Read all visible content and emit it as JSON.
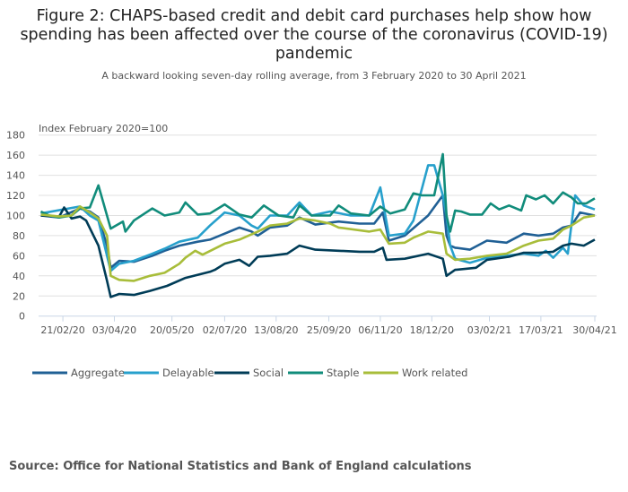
{
  "chart_data": {
    "type": "line",
    "title": "Figure 2: CHAPS-based credit and debit card purchases help show how spending has been affected over the course of the coronavirus (COVID-19) pandemic",
    "subtitle": "A backward looking seven-day rolling average, from 3 February 2020 to 30 April 2021",
    "ylabel": "Index February 2020=100",
    "xlabel": "",
    "ylim": [
      0,
      180
    ],
    "yticks": [
      "0",
      "20",
      "40",
      "60",
      "80",
      "100",
      "120",
      "140",
      "160",
      "180"
    ],
    "x_unit": "days since 03/02/20",
    "xlim": [
      0,
      452
    ],
    "xticks": [
      {
        "day": 18,
        "label": "21/02/20"
      },
      {
        "day": 60,
        "label": "03/04/20"
      },
      {
        "day": 107,
        "label": "20/05/20"
      },
      {
        "day": 150,
        "label": "02/07/20"
      },
      {
        "day": 192,
        "label": "13/08/20"
      },
      {
        "day": 235,
        "label": "25/09/20"
      },
      {
        "day": 277,
        "label": "06/11/20"
      },
      {
        "day": 319,
        "label": "18/12/20"
      },
      {
        "day": 366,
        "label": "03/02/21"
      },
      {
        "day": 408,
        "label": "17/03/21"
      },
      {
        "day": 452,
        "label": "30/04/21"
      }
    ],
    "grid": true,
    "legend_position": "bottom",
    "series": [
      {
        "name": "Aggregate",
        "color": "#206095",
        "points": [
          [
            0,
            100
          ],
          [
            15,
            98
          ],
          [
            32,
            107
          ],
          [
            40,
            104
          ],
          [
            47,
            98
          ],
          [
            54,
            70
          ],
          [
            57,
            48
          ],
          [
            64,
            55
          ],
          [
            76,
            54
          ],
          [
            91,
            60
          ],
          [
            101,
            65
          ],
          [
            113,
            70
          ],
          [
            128,
            74
          ],
          [
            138,
            76
          ],
          [
            150,
            82
          ],
          [
            162,
            88
          ],
          [
            172,
            84
          ],
          [
            177,
            80
          ],
          [
            187,
            88
          ],
          [
            201,
            90
          ],
          [
            211,
            98
          ],
          [
            224,
            91
          ],
          [
            243,
            94
          ],
          [
            260,
            92
          ],
          [
            272,
            92
          ],
          [
            279,
            103
          ],
          [
            284,
            75
          ],
          [
            297,
            80
          ],
          [
            316,
            100
          ],
          [
            328,
            120
          ],
          [
            331,
            80
          ],
          [
            334,
            70
          ],
          [
            338,
            68
          ],
          [
            350,
            66
          ],
          [
            364,
            75
          ],
          [
            380,
            73
          ],
          [
            394,
            82
          ],
          [
            406,
            80
          ],
          [
            418,
            82
          ],
          [
            426,
            88
          ],
          [
            433,
            90
          ],
          [
            440,
            103
          ],
          [
            452,
            100
          ]
        ]
      },
      {
        "name": "Delayable",
        "color": "#27a0cc",
        "points": [
          [
            0,
            102
          ],
          [
            32,
            109
          ],
          [
            40,
            100
          ],
          [
            47,
            95
          ],
          [
            54,
            60
          ],
          [
            57,
            45
          ],
          [
            64,
            52
          ],
          [
            76,
            55
          ],
          [
            91,
            62
          ],
          [
            101,
            67
          ],
          [
            113,
            74
          ],
          [
            128,
            78
          ],
          [
            138,
            90
          ],
          [
            150,
            103
          ],
          [
            162,
            100
          ],
          [
            172,
            90
          ],
          [
            177,
            87
          ],
          [
            187,
            100
          ],
          [
            201,
            100
          ],
          [
            211,
            113
          ],
          [
            221,
            100
          ],
          [
            236,
            104
          ],
          [
            253,
            100
          ],
          [
            268,
            100
          ],
          [
            277,
            128
          ],
          [
            284,
            80
          ],
          [
            297,
            82
          ],
          [
            304,
            95
          ],
          [
            316,
            150
          ],
          [
            321,
            150
          ],
          [
            328,
            120
          ],
          [
            331,
            100
          ],
          [
            334,
            70
          ],
          [
            338,
            57
          ],
          [
            350,
            53
          ],
          [
            364,
            58
          ],
          [
            380,
            60
          ],
          [
            394,
            62
          ],
          [
            406,
            60
          ],
          [
            412,
            65
          ],
          [
            418,
            58
          ],
          [
            426,
            68
          ],
          [
            430,
            62
          ],
          [
            436,
            120
          ],
          [
            443,
            110
          ],
          [
            452,
            106
          ]
        ]
      },
      {
        "name": "Social",
        "color": "#003c57",
        "points": [
          [
            0,
            100
          ],
          [
            15,
            99
          ],
          [
            19,
            108
          ],
          [
            25,
            97
          ],
          [
            32,
            99
          ],
          [
            37,
            95
          ],
          [
            47,
            70
          ],
          [
            54,
            35
          ],
          [
            57,
            19
          ],
          [
            64,
            22
          ],
          [
            76,
            21
          ],
          [
            89,
            25
          ],
          [
            103,
            30
          ],
          [
            118,
            38
          ],
          [
            138,
            44
          ],
          [
            142,
            46
          ],
          [
            150,
            52
          ],
          [
            162,
            56
          ],
          [
            170,
            50
          ],
          [
            177,
            59
          ],
          [
            187,
            60
          ],
          [
            201,
            62
          ],
          [
            211,
            70
          ],
          [
            224,
            66
          ],
          [
            260,
            64
          ],
          [
            272,
            64
          ],
          [
            279,
            68
          ],
          [
            282,
            56
          ],
          [
            297,
            57
          ],
          [
            316,
            62
          ],
          [
            328,
            57
          ],
          [
            331,
            40
          ],
          [
            338,
            46
          ],
          [
            355,
            48
          ],
          [
            364,
            56
          ],
          [
            382,
            59
          ],
          [
            394,
            63
          ],
          [
            406,
            63
          ],
          [
            418,
            64
          ],
          [
            426,
            70
          ],
          [
            433,
            72
          ],
          [
            443,
            70
          ],
          [
            452,
            76
          ]
        ]
      },
      {
        "name": "Staple",
        "color": "#118c7b",
        "points": [
          [
            0,
            104
          ],
          [
            7,
            100
          ],
          [
            15,
            98
          ],
          [
            25,
            100
          ],
          [
            32,
            107
          ],
          [
            40,
            108
          ],
          [
            47,
            130
          ],
          [
            57,
            87
          ],
          [
            67,
            94
          ],
          [
            69,
            84
          ],
          [
            76,
            95
          ],
          [
            91,
            107
          ],
          [
            101,
            100
          ],
          [
            113,
            103
          ],
          [
            118,
            113
          ],
          [
            128,
            101
          ],
          [
            138,
            102
          ],
          [
            150,
            111
          ],
          [
            162,
            101
          ],
          [
            172,
            98
          ],
          [
            182,
            110
          ],
          [
            194,
            100
          ],
          [
            206,
            98
          ],
          [
            211,
            110
          ],
          [
            221,
            100
          ],
          [
            236,
            100
          ],
          [
            243,
            110
          ],
          [
            253,
            102
          ],
          [
            268,
            100
          ],
          [
            277,
            109
          ],
          [
            285,
            102
          ],
          [
            297,
            106
          ],
          [
            304,
            122
          ],
          [
            311,
            120
          ],
          [
            321,
            120
          ],
          [
            328,
            161
          ],
          [
            331,
            100
          ],
          [
            334,
            84
          ],
          [
            338,
            105
          ],
          [
            343,
            104
          ],
          [
            350,
            101
          ],
          [
            360,
            101
          ],
          [
            367,
            112
          ],
          [
            374,
            106
          ],
          [
            382,
            110
          ],
          [
            392,
            105
          ],
          [
            396,
            120
          ],
          [
            404,
            116
          ],
          [
            411,
            120
          ],
          [
            418,
            112
          ],
          [
            426,
            123
          ],
          [
            433,
            118
          ],
          [
            438,
            112
          ],
          [
            445,
            112
          ],
          [
            452,
            117
          ]
        ]
      },
      {
        "name": "Work related",
        "color": "#a8bd3a",
        "points": [
          [
            0,
            101
          ],
          [
            15,
            99
          ],
          [
            25,
            100
          ],
          [
            32,
            109
          ],
          [
            40,
            103
          ],
          [
            47,
            97
          ],
          [
            54,
            80
          ],
          [
            57,
            40
          ],
          [
            64,
            36
          ],
          [
            76,
            35
          ],
          [
            89,
            40
          ],
          [
            101,
            43
          ],
          [
            113,
            52
          ],
          [
            118,
            58
          ],
          [
            126,
            65
          ],
          [
            132,
            61
          ],
          [
            150,
            72
          ],
          [
            162,
            76
          ],
          [
            177,
            84
          ],
          [
            187,
            90
          ],
          [
            201,
            92
          ],
          [
            211,
            97
          ],
          [
            224,
            95
          ],
          [
            236,
            92
          ],
          [
            243,
            88
          ],
          [
            268,
            84
          ],
          [
            277,
            86
          ],
          [
            284,
            72
          ],
          [
            297,
            73
          ],
          [
            304,
            78
          ],
          [
            316,
            84
          ],
          [
            328,
            82
          ],
          [
            331,
            62
          ],
          [
            338,
            56
          ],
          [
            350,
            57
          ],
          [
            364,
            60
          ],
          [
            380,
            62
          ],
          [
            394,
            70
          ],
          [
            406,
            75
          ],
          [
            418,
            77
          ],
          [
            426,
            86
          ],
          [
            433,
            90
          ],
          [
            443,
            98
          ],
          [
            452,
            100
          ]
        ]
      }
    ],
    "source": "Source: Office for National Statistics and Bank of England calculations"
  }
}
